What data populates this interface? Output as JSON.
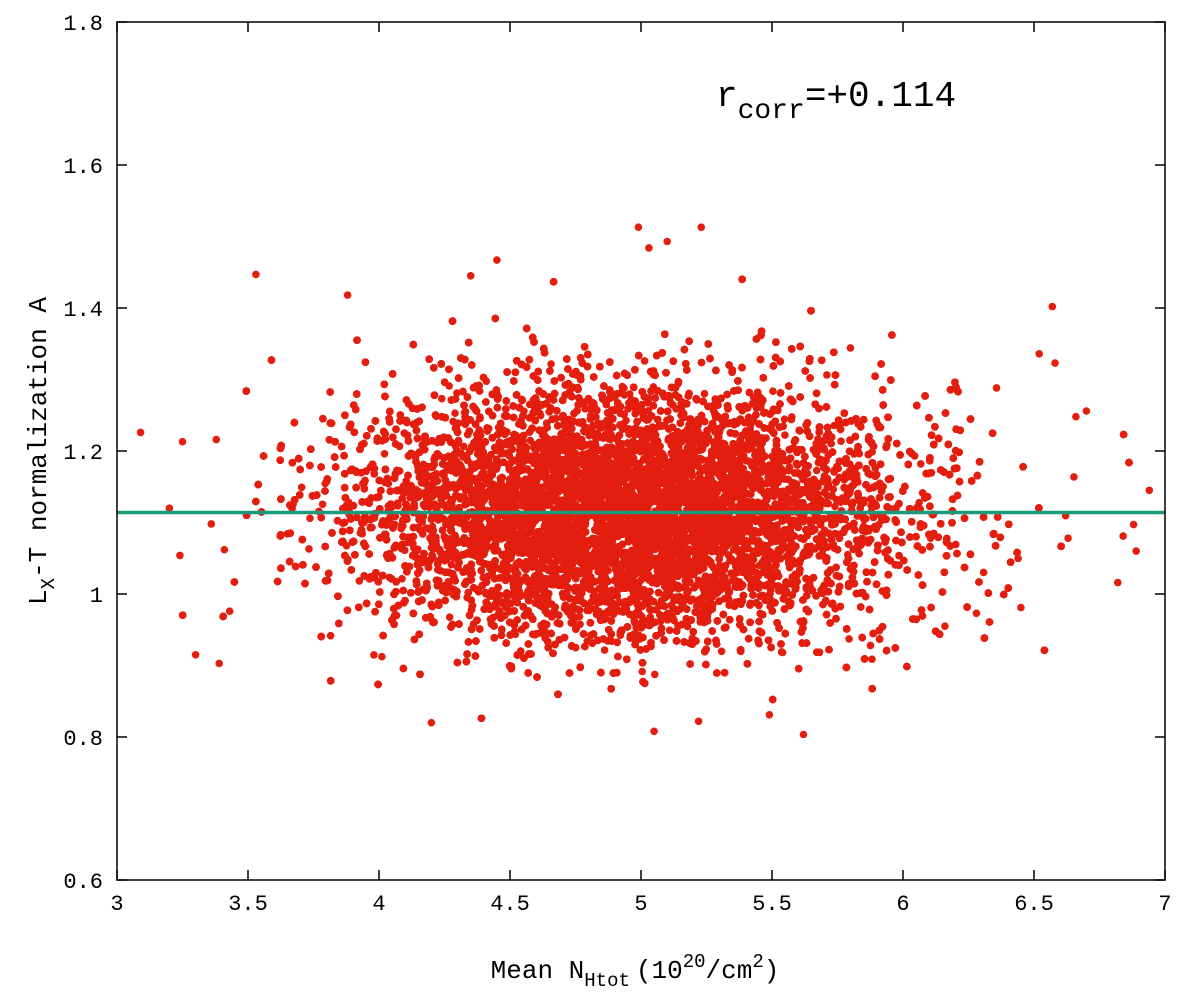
{
  "chart_data": {
    "type": "scatter",
    "x_axis": {
      "label_main": "Mean N",
      "label_sub": "Htot",
      "label_unit_open": "(10",
      "label_unit_exp": "20",
      "label_unit_mid": "/cm",
      "label_unit_exp2": "2",
      "label_unit_close": ")",
      "range": [
        3,
        7
      ],
      "ticks": [
        "3",
        "3.5",
        "4",
        "4.5",
        "5",
        "5.5",
        "6",
        "6.5",
        "7"
      ]
    },
    "y_axis": {
      "label_main": "L",
      "label_sub": "X",
      "label_rest": "-T normalization A",
      "range": [
        0.6,
        1.8
      ],
      "ticks": [
        "0.6",
        "0.8",
        "1",
        "1.2",
        "1.4",
        "1.6",
        "1.8"
      ]
    },
    "annotation": {
      "main": "r",
      "sub": "corr",
      "value": "=+0.114"
    },
    "reference_line": {
      "y": 1.114,
      "color": "#1a9a7a"
    },
    "series": [
      {
        "color": "#e41e0f",
        "distribution": {
          "x_mean": 4.95,
          "x_sd": 0.5,
          "y_mean": 1.115,
          "y_sd": 0.085,
          "n": 22000
        },
        "outliers": [
          [
            3.09,
            1.226
          ],
          [
            3.2,
            1.12
          ],
          [
            3.24,
            1.054
          ],
          [
            3.25,
            1.213
          ],
          [
            3.3,
            0.915
          ],
          [
            3.36,
            1.098
          ],
          [
            3.39,
            0.903
          ],
          [
            3.41,
            1.062
          ],
          [
            3.43,
            0.976
          ],
          [
            3.53,
            1.447
          ],
          [
            3.88,
            1.418
          ],
          [
            4.2,
            0.82
          ],
          [
            4.35,
            1.445
          ],
          [
            4.45,
            1.467
          ],
          [
            4.99,
            1.513
          ],
          [
            5.03,
            1.484
          ],
          [
            5.1,
            1.493
          ],
          [
            5.23,
            1.513
          ],
          [
            5.05,
            0.808
          ],
          [
            5.22,
            0.822
          ],
          [
            5.49,
            0.831
          ],
          [
            6.57,
            1.402
          ],
          [
            6.66,
            1.248
          ],
          [
            6.7,
            1.256
          ],
          [
            6.82,
            1.016
          ],
          [
            6.84,
            1.081
          ],
          [
            6.89,
            1.06
          ],
          [
            6.94,
            1.145
          ],
          [
            6.88,
            1.097
          ],
          [
            6.63,
            1.078
          ],
          [
            6.45,
            0.981
          ],
          [
            6.28,
            0.973
          ],
          [
            6.16,
            0.955
          ],
          [
            6.52,
            1.336
          ],
          [
            6.58,
            1.323
          ]
        ]
      }
    ],
    "grid": false
  }
}
